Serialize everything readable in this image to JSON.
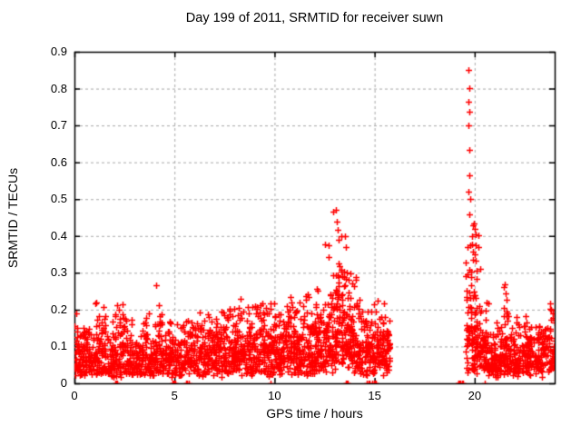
{
  "window": {
    "background": "#ffffff"
  },
  "chart_data": {
    "type": "scatter",
    "title": "Day 199 of 2011, SRMTID for receiver suwn",
    "xlabel": "GPS time / hours",
    "ylabel": "SRMTID / TECUs",
    "xlim": [
      0,
      24
    ],
    "ylim": [
      0,
      0.9
    ],
    "xticks": [
      [
        0,
        "0"
      ],
      [
        5,
        "5"
      ],
      [
        10,
        "10"
      ],
      [
        15,
        "15"
      ],
      [
        20,
        "20"
      ]
    ],
    "yticks": [
      [
        0,
        "0"
      ],
      [
        0.1,
        "0.1"
      ],
      [
        0.2,
        "0.2"
      ],
      [
        0.3,
        "0.3"
      ],
      [
        0.4,
        "0.4"
      ],
      [
        0.5,
        "0.5"
      ],
      [
        0.6,
        "0.6"
      ],
      [
        0.7,
        "0.7"
      ],
      [
        0.8,
        "0.8"
      ],
      [
        0.9,
        "0.9"
      ]
    ],
    "grid": {
      "style": "dashed",
      "color": "#a8a8a8"
    },
    "border_color": "#000000",
    "marker": {
      "glyph": "+",
      "color": "#ff0000",
      "size": 7,
      "stroke": 1.5
    },
    "legend": null,
    "seed": 20111,
    "note": "dense band 0-15.8h and 19.5-24h near 0.02-0.25 TECU; spike to 0.47 at 13h; data gap 15.8-19.2h; streak to 0.85 at 19.7h",
    "segments": [
      [
        0,
        0.5,
        60,
        0.015,
        0.038,
        0.21
      ],
      [
        0.5,
        1,
        55,
        0.015,
        0.035,
        0.17
      ],
      [
        1,
        1.5,
        60,
        0.015,
        0.04,
        0.23
      ],
      [
        1.5,
        2,
        55,
        0.015,
        0.036,
        0.19
      ],
      [
        2,
        2.5,
        60,
        0.015,
        0.04,
        0.25
      ],
      [
        2.5,
        3,
        55,
        0.015,
        0.035,
        0.18
      ],
      [
        3,
        3.5,
        55,
        0.015,
        0.035,
        0.18
      ],
      [
        3.5,
        4,
        55,
        0.015,
        0.037,
        0.2
      ],
      [
        4,
        4.5,
        60,
        0.015,
        0.04,
        0.22
      ],
      [
        4.5,
        5,
        55,
        0.015,
        0.036,
        0.18
      ],
      [
        5,
        5.5,
        50,
        0.012,
        0.032,
        0.16
      ],
      [
        5.5,
        6,
        55,
        0.015,
        0.035,
        0.18
      ],
      [
        6,
        6.5,
        55,
        0.015,
        0.038,
        0.2
      ],
      [
        6.5,
        7,
        55,
        0.015,
        0.036,
        0.19
      ],
      [
        7,
        7.5,
        60,
        0.015,
        0.04,
        0.21
      ],
      [
        7.5,
        8,
        60,
        0.015,
        0.042,
        0.22
      ],
      [
        8,
        8.5,
        62,
        0.015,
        0.044,
        0.23
      ],
      [
        8.5,
        9,
        60,
        0.015,
        0.042,
        0.21
      ],
      [
        9,
        9.5,
        62,
        0.015,
        0.044,
        0.22
      ],
      [
        9.5,
        10,
        62,
        0.015,
        0.045,
        0.24
      ],
      [
        10,
        10.5,
        62,
        0.015,
        0.044,
        0.22
      ],
      [
        10.5,
        11,
        65,
        0.015,
        0.047,
        0.25
      ],
      [
        11,
        11.5,
        65,
        0.015,
        0.046,
        0.23
      ],
      [
        11.5,
        12,
        66,
        0.015,
        0.05,
        0.25
      ],
      [
        12,
        12.5,
        70,
        0.02,
        0.05,
        0.28
      ],
      [
        12.5,
        13,
        70,
        0.025,
        0.065,
        0.4
      ],
      [
        13,
        13.35,
        58,
        0.05,
        0.085,
        0.47
      ],
      [
        13.35,
        13.7,
        55,
        0.03,
        0.07,
        0.4
      ],
      [
        13.7,
        14.1,
        60,
        0.02,
        0.06,
        0.33
      ],
      [
        14.1,
        14.6,
        62,
        0.015,
        0.045,
        0.25
      ],
      [
        14.6,
        15.1,
        60,
        0.015,
        0.04,
        0.22
      ],
      [
        15.1,
        15.55,
        58,
        0.015,
        0.045,
        0.25
      ],
      [
        15.55,
        15.78,
        32,
        0.015,
        0.038,
        0.2
      ],
      [
        19.55,
        19.85,
        46,
        0.02,
        0.09,
        0.49
      ],
      [
        19.85,
        20.2,
        62,
        0.02,
        0.08,
        0.45
      ],
      [
        20.2,
        20.6,
        55,
        0.015,
        0.042,
        0.3
      ],
      [
        20.6,
        21,
        52,
        0.015,
        0.036,
        0.22
      ],
      [
        21,
        21.4,
        52,
        0.015,
        0.036,
        0.2
      ],
      [
        21.4,
        21.7,
        50,
        0.015,
        0.042,
        0.27
      ],
      [
        21.7,
        22.2,
        56,
        0.015,
        0.035,
        0.18
      ],
      [
        22.2,
        22.7,
        56,
        0.015,
        0.036,
        0.2
      ],
      [
        22.7,
        23.2,
        56,
        0.015,
        0.035,
        0.19
      ],
      [
        23.2,
        23.7,
        56,
        0.015,
        0.035,
        0.18
      ],
      [
        23.7,
        24,
        46,
        0.015,
        0.04,
        0.22
      ]
    ],
    "outliers": [
      [
        4.08,
        0.266
      ],
      [
        12.95,
        0.465
      ],
      [
        13.05,
        0.47
      ],
      [
        13.1,
        0.44
      ],
      [
        13.5,
        0.4
      ],
      [
        13.55,
        0.37
      ],
      [
        19.7,
        0.851
      ],
      [
        19.72,
        0.801
      ],
      [
        19.69,
        0.764
      ],
      [
        19.73,
        0.737
      ],
      [
        19.7,
        0.7
      ],
      [
        19.72,
        0.634
      ],
      [
        19.74,
        0.565
      ],
      [
        19.68,
        0.52
      ],
      [
        19.76,
        0.5
      ],
      [
        19.95,
        0.435
      ],
      [
        20.0,
        0.42
      ],
      [
        20.05,
        0.405
      ],
      [
        20.3,
        0.31
      ],
      [
        21.52,
        0.27
      ],
      [
        21.55,
        0.245
      ]
    ],
    "zeros": [
      2.06,
      2.1,
      2.15,
      4.9,
      4.95,
      5.0,
      5.03,
      5.58,
      5.64,
      5.7,
      9.78,
      13.56,
      13.6,
      13.66,
      14.63,
      14.68,
      14.74,
      14.9,
      14.96,
      15.02,
      15.06,
      19.17,
      19.2,
      19.24,
      19.3,
      19.36,
      19.42,
      20.52
    ]
  }
}
